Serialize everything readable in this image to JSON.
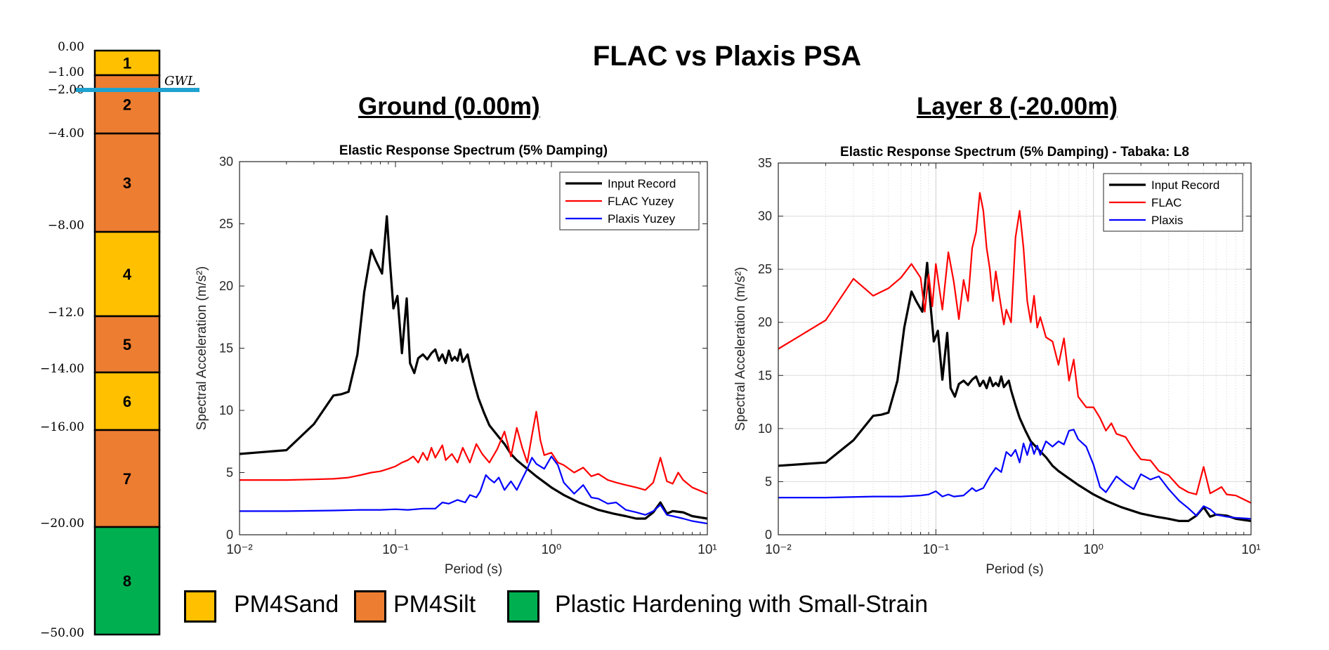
{
  "figure_title": "FLAC vs Plaxis PSA",
  "panels": [
    {
      "heading": "Ground (0.00m)"
    },
    {
      "heading": "Layer 8 (-20.00m)"
    }
  ],
  "soil_column": {
    "gwl_label": "GWL",
    "gwl_depth": -2.0,
    "depth_labels": [
      "0.00",
      "−1.00",
      "−2.00",
      "−4.00",
      "−8.00",
      "−12.0",
      "−14.00",
      "−16.00",
      "−20.00",
      "−50.00"
    ],
    "layers": [
      {
        "label": "1",
        "top": 0,
        "bottom": -1,
        "material": "PM4Sand"
      },
      {
        "label": "2",
        "top": -1,
        "bottom": -4,
        "material": "PM4Silt"
      },
      {
        "label": "3",
        "top": -4,
        "bottom": -8,
        "material": "PM4Silt"
      },
      {
        "label": "4",
        "top": -8,
        "bottom": -12,
        "material": "PM4Sand"
      },
      {
        "label": "5",
        "top": -12,
        "bottom": -14,
        "material": "PM4Silt"
      },
      {
        "label": "6",
        "top": -14,
        "bottom": -16,
        "material": "PM4Sand"
      },
      {
        "label": "7",
        "top": -16,
        "bottom": -20,
        "material": "PM4Silt"
      },
      {
        "label": "8",
        "top": -20,
        "bottom": -50,
        "material": "Plastic Hardening with Small-Strain"
      }
    ]
  },
  "material_legend": [
    {
      "label": "PM4Sand",
      "color": "#FFC000"
    },
    {
      "label": "PM4Silt",
      "color": "#ED7D31"
    },
    {
      "label": "Plastic Hardening with Small-Strain",
      "color": "#00B050"
    }
  ],
  "colors": {
    "gwl": "#1FA2CF",
    "input": "#000000",
    "flac": "#FF0000",
    "plaxis": "#0000FF"
  },
  "chart_data": [
    {
      "type": "line",
      "title": "Elastic Response Spectrum (5% Damping)",
      "xlabel": "Period (s)",
      "ylabel": "Spectral Acceleration (m/s²)",
      "xscale": "log",
      "xlim": [
        0.01,
        10
      ],
      "ylim": [
        0,
        30
      ],
      "yticks": [
        0,
        5,
        10,
        15,
        20,
        25,
        30
      ],
      "xtick_labels": [
        "10⁻²",
        "10⁻¹",
        "10⁰",
        "10¹"
      ],
      "grid": false,
      "legend_position": "top-right",
      "series": [
        {
          "name": "Input Record",
          "color": "#000000",
          "width": 3.2,
          "x": [
            0.01,
            0.02,
            0.03,
            0.04,
            0.045,
            0.05,
            0.057,
            0.063,
            0.07,
            0.075,
            0.082,
            0.088,
            0.092,
            0.097,
            0.103,
            0.11,
            0.118,
            0.124,
            0.132,
            0.14,
            0.15,
            0.16,
            0.17,
            0.18,
            0.19,
            0.2,
            0.21,
            0.22,
            0.23,
            0.24,
            0.25,
            0.26,
            0.27,
            0.28,
            0.29,
            0.3,
            0.32,
            0.34,
            0.37,
            0.4,
            0.45,
            0.5,
            0.55,
            0.6,
            0.7,
            0.8,
            1.0,
            1.2,
            1.5,
            2.0,
            2.5,
            3.0,
            3.5,
            4.0,
            4.5,
            5.0,
            5.5,
            6.0,
            7.0,
            8.0,
            10.0
          ],
          "y": [
            6.5,
            6.8,
            8.9,
            11.2,
            11.3,
            11.5,
            14.5,
            19.5,
            22.9,
            22.0,
            21.0,
            25.6,
            22.0,
            18.2,
            19.2,
            14.6,
            19.0,
            13.8,
            13.0,
            14.2,
            14.5,
            14.1,
            14.6,
            14.9,
            14.0,
            14.5,
            13.8,
            14.8,
            14.0,
            14.3,
            14.0,
            14.9,
            13.9,
            14.2,
            14.5,
            13.6,
            12.2,
            11.0,
            9.8,
            8.8,
            8.0,
            7.3,
            6.5,
            6.0,
            5.3,
            4.7,
            3.8,
            3.2,
            2.6,
            2.0,
            1.7,
            1.5,
            1.3,
            1.3,
            1.8,
            2.6,
            1.7,
            1.9,
            1.8,
            1.5,
            1.3
          ]
        },
        {
          "name": "FLAC Yuzey",
          "color": "#FF0000",
          "width": 2.2,
          "x": [
            0.01,
            0.02,
            0.03,
            0.04,
            0.05,
            0.06,
            0.07,
            0.08,
            0.09,
            0.1,
            0.11,
            0.12,
            0.13,
            0.14,
            0.15,
            0.16,
            0.17,
            0.18,
            0.2,
            0.21,
            0.23,
            0.25,
            0.27,
            0.3,
            0.33,
            0.36,
            0.4,
            0.45,
            0.5,
            0.55,
            0.6,
            0.65,
            0.7,
            0.75,
            0.8,
            0.85,
            0.9,
            1.0,
            1.1,
            1.2,
            1.4,
            1.6,
            1.8,
            2.0,
            2.3,
            2.6,
            3.0,
            3.5,
            4.0,
            4.5,
            5.0,
            5.5,
            6.0,
            6.5,
            7.0,
            8.0,
            10.0
          ],
          "y": [
            4.4,
            4.4,
            4.45,
            4.5,
            4.6,
            4.8,
            5.0,
            5.1,
            5.3,
            5.5,
            5.8,
            6.0,
            6.3,
            5.8,
            6.6,
            6.0,
            7.0,
            6.2,
            7.2,
            6.0,
            6.5,
            5.8,
            7.0,
            5.8,
            7.3,
            6.5,
            5.8,
            6.9,
            8.3,
            6.3,
            8.6,
            7.0,
            5.8,
            8.0,
            9.9,
            7.6,
            6.4,
            6.6,
            5.8,
            5.6,
            5.0,
            5.4,
            4.7,
            4.9,
            4.4,
            4.2,
            4.0,
            3.8,
            3.6,
            4.2,
            6.2,
            4.3,
            4.1,
            5.0,
            4.4,
            3.8,
            3.3
          ]
        },
        {
          "name": "Plaxis Yuzey",
          "color": "#0000FF",
          "width": 2.2,
          "x": [
            0.01,
            0.02,
            0.04,
            0.06,
            0.08,
            0.1,
            0.12,
            0.15,
            0.18,
            0.2,
            0.22,
            0.25,
            0.28,
            0.3,
            0.33,
            0.35,
            0.38,
            0.4,
            0.43,
            0.46,
            0.5,
            0.55,
            0.6,
            0.65,
            0.7,
            0.75,
            0.8,
            0.9,
            1.0,
            1.1,
            1.2,
            1.4,
            1.6,
            1.8,
            2.0,
            2.3,
            2.6,
            3.0,
            3.5,
            4.0,
            4.5,
            5.0,
            5.5,
            6.0,
            7.0,
            8.0,
            10.0
          ],
          "y": [
            1.9,
            1.9,
            1.95,
            2.0,
            2.0,
            2.05,
            2.0,
            2.1,
            2.1,
            2.6,
            2.5,
            2.8,
            2.6,
            3.2,
            3.0,
            3.5,
            4.8,
            4.5,
            4.2,
            4.6,
            3.6,
            4.3,
            3.6,
            4.5,
            5.3,
            6.2,
            5.7,
            5.3,
            6.3,
            5.6,
            4.2,
            3.3,
            4.0,
            3.0,
            2.9,
            2.5,
            2.6,
            2.0,
            1.8,
            1.6,
            1.9,
            2.4,
            1.6,
            1.5,
            1.3,
            1.1,
            0.9
          ]
        }
      ]
    },
    {
      "type": "line",
      "title": "Elastic Response Spectrum (5% Damping) - Tabaka: L8",
      "xlabel": "Period (s)",
      "ylabel": "Spectral Acceleration (m/s²)",
      "xscale": "log",
      "xlim": [
        0.01,
        10
      ],
      "ylim": [
        0,
        35
      ],
      "yticks": [
        0,
        5,
        10,
        15,
        20,
        25,
        30,
        35
      ],
      "xtick_labels": [
        "10⁻²",
        "10⁻¹",
        "10⁰",
        "10¹"
      ],
      "grid": true,
      "legend_position": "top-right",
      "series": [
        {
          "name": "Input Record",
          "color": "#000000",
          "width": 3.2,
          "x": [
            0.01,
            0.02,
            0.03,
            0.04,
            0.045,
            0.05,
            0.057,
            0.063,
            0.07,
            0.075,
            0.082,
            0.088,
            0.092,
            0.097,
            0.103,
            0.11,
            0.118,
            0.124,
            0.132,
            0.14,
            0.15,
            0.16,
            0.17,
            0.18,
            0.19,
            0.2,
            0.21,
            0.22,
            0.23,
            0.24,
            0.25,
            0.26,
            0.27,
            0.28,
            0.29,
            0.3,
            0.32,
            0.34,
            0.37,
            0.4,
            0.45,
            0.5,
            0.55,
            0.6,
            0.7,
            0.8,
            1.0,
            1.2,
            1.5,
            2.0,
            2.5,
            3.0,
            3.5,
            4.0,
            4.5,
            5.0,
            5.5,
            6.0,
            7.0,
            8.0,
            10.0
          ],
          "y": [
            6.5,
            6.8,
            8.9,
            11.2,
            11.3,
            11.5,
            14.5,
            19.5,
            22.9,
            22.0,
            21.0,
            25.6,
            22.0,
            18.2,
            19.2,
            14.6,
            19.0,
            13.8,
            13.0,
            14.2,
            14.5,
            14.1,
            14.6,
            14.9,
            14.0,
            14.5,
            13.8,
            14.8,
            14.0,
            14.3,
            14.0,
            14.9,
            13.9,
            14.2,
            14.5,
            13.6,
            12.2,
            11.0,
            9.8,
            8.8,
            8.0,
            7.3,
            6.5,
            6.0,
            5.3,
            4.7,
            3.8,
            3.2,
            2.6,
            2.0,
            1.7,
            1.5,
            1.3,
            1.3,
            1.8,
            2.6,
            1.7,
            1.9,
            1.8,
            1.5,
            1.3
          ]
        },
        {
          "name": "FLAC",
          "color": "#FF0000",
          "width": 2.2,
          "x": [
            0.01,
            0.02,
            0.03,
            0.04,
            0.05,
            0.06,
            0.07,
            0.08,
            0.085,
            0.09,
            0.095,
            0.1,
            0.11,
            0.12,
            0.13,
            0.14,
            0.15,
            0.16,
            0.17,
            0.18,
            0.19,
            0.2,
            0.21,
            0.22,
            0.23,
            0.24,
            0.25,
            0.27,
            0.28,
            0.3,
            0.32,
            0.34,
            0.36,
            0.38,
            0.4,
            0.42,
            0.44,
            0.46,
            0.5,
            0.55,
            0.6,
            0.65,
            0.7,
            0.75,
            0.8,
            0.9,
            1.0,
            1.1,
            1.2,
            1.3,
            1.4,
            1.6,
            1.8,
            2.0,
            2.3,
            2.6,
            3.0,
            3.5,
            4.0,
            4.5,
            5.0,
            5.5,
            6.0,
            6.5,
            7.0,
            8.0,
            10.0
          ],
          "y": [
            17.5,
            20.2,
            24.1,
            22.5,
            23.2,
            24.2,
            25.5,
            24.2,
            21.0,
            24.5,
            21.5,
            25.5,
            21.2,
            26.6,
            23.8,
            20.3,
            24.0,
            22.0,
            27.0,
            28.5,
            32.2,
            30.5,
            27.0,
            25.0,
            22.0,
            24.8,
            23.0,
            19.8,
            21.2,
            20.0,
            28.0,
            30.5,
            27.0,
            22.0,
            20.0,
            22.5,
            19.5,
            20.5,
            18.6,
            18.2,
            16.0,
            18.5,
            14.5,
            16.5,
            13.0,
            12.0,
            12.0,
            11.0,
            9.8,
            10.5,
            9.5,
            9.2,
            8.0,
            7.1,
            7.0,
            6.0,
            5.6,
            4.5,
            4.0,
            3.8,
            6.4,
            3.9,
            4.2,
            4.5,
            3.8,
            3.7,
            3.0
          ]
        },
        {
          "name": "Plaxis",
          "color": "#0000FF",
          "width": 2.2,
          "x": [
            0.01,
            0.02,
            0.04,
            0.06,
            0.08,
            0.09,
            0.1,
            0.11,
            0.12,
            0.13,
            0.15,
            0.17,
            0.18,
            0.2,
            0.22,
            0.24,
            0.26,
            0.28,
            0.3,
            0.32,
            0.34,
            0.36,
            0.38,
            0.4,
            0.42,
            0.44,
            0.46,
            0.5,
            0.55,
            0.6,
            0.65,
            0.7,
            0.75,
            0.8,
            0.9,
            1.0,
            1.1,
            1.2,
            1.4,
            1.6,
            1.8,
            2.0,
            2.3,
            2.6,
            3.0,
            3.5,
            4.0,
            4.5,
            5.0,
            5.5,
            6.0,
            7.0,
            8.0,
            10.0
          ],
          "y": [
            3.5,
            3.5,
            3.6,
            3.6,
            3.7,
            3.8,
            4.1,
            3.6,
            3.8,
            3.6,
            3.7,
            4.4,
            4.1,
            4.4,
            5.5,
            6.3,
            5.9,
            7.8,
            7.4,
            8.0,
            6.8,
            8.6,
            7.5,
            8.7,
            7.6,
            8.4,
            7.5,
            8.8,
            8.3,
            8.8,
            8.5,
            9.8,
            9.9,
            9.0,
            8.3,
            6.6,
            4.5,
            4.0,
            5.5,
            4.8,
            4.3,
            5.7,
            5.2,
            5.5,
            4.3,
            3.2,
            2.5,
            1.8,
            2.7,
            2.4,
            1.9,
            1.7,
            1.6,
            1.5
          ]
        }
      ]
    }
  ]
}
